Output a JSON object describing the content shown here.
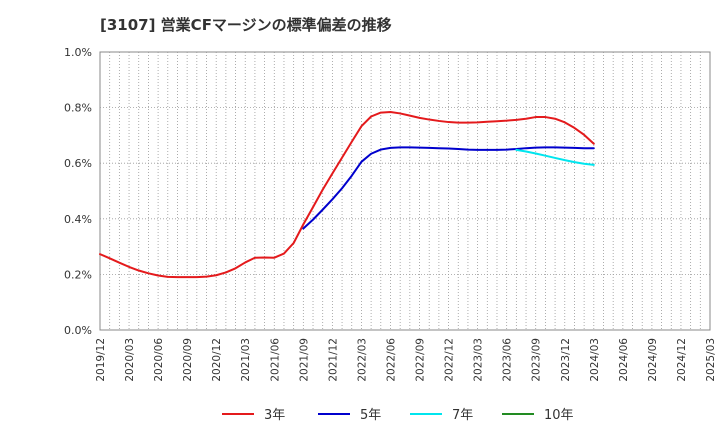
{
  "chart_data": {
    "type": "line",
    "title": "[3107]  営業CFマージンの標準偏差の推移",
    "xlabel": "",
    "ylabel": "",
    "ylim": [
      0,
      1.0
    ],
    "y_ticks": [
      "0.0%",
      "0.2%",
      "0.4%",
      "0.6%",
      "0.8%",
      "1.0%"
    ],
    "y_tick_values": [
      0,
      0.2,
      0.4,
      0.6,
      0.8,
      1.0
    ],
    "x_ticks": [
      "2019/12",
      "2020/03",
      "2020/06",
      "2020/09",
      "2020/12",
      "2021/03",
      "2021/06",
      "2021/09",
      "2021/12",
      "2022/03",
      "2022/06",
      "2022/09",
      "2022/12",
      "2023/03",
      "2023/06",
      "2023/09",
      "2023/12",
      "2024/03",
      "2024/06",
      "2024/09",
      "2024/12",
      "2025/03"
    ],
    "grid": true,
    "series": [
      {
        "name": "3年",
        "color": "#e41a1c",
        "x": [
          "2019/12",
          "2020/01",
          "2020/02",
          "2020/03",
          "2020/04",
          "2020/05",
          "2020/06",
          "2020/07",
          "2020/08",
          "2020/09",
          "2020/10",
          "2020/11",
          "2020/12",
          "2021/01",
          "2021/02",
          "2021/03",
          "2021/04",
          "2021/05",
          "2021/06",
          "2021/07",
          "2021/08",
          "2021/09",
          "2021/10",
          "2021/11",
          "2021/12",
          "2022/01",
          "2022/02",
          "2022/03",
          "2022/04",
          "2022/05",
          "2022/06",
          "2022/07",
          "2022/08",
          "2022/09",
          "2022/10",
          "2022/11",
          "2022/12",
          "2023/01",
          "2023/02",
          "2023/03",
          "2023/04",
          "2023/05",
          "2023/06",
          "2023/07",
          "2023/08",
          "2023/09",
          "2023/10",
          "2023/11",
          "2023/12",
          "2024/01",
          "2024/02",
          "2024/03"
        ],
        "values": [
          0.273,
          0.258,
          0.242,
          0.227,
          0.214,
          0.204,
          0.196,
          0.191,
          0.19,
          0.19,
          0.19,
          0.192,
          0.197,
          0.207,
          0.222,
          0.243,
          0.26,
          0.261,
          0.26,
          0.275,
          0.313,
          0.38,
          0.442,
          0.505,
          0.563,
          0.62,
          0.677,
          0.733,
          0.768,
          0.782,
          0.784,
          0.779,
          0.771,
          0.763,
          0.757,
          0.752,
          0.748,
          0.746,
          0.746,
          0.747,
          0.749,
          0.751,
          0.753,
          0.756,
          0.76,
          0.766,
          0.766,
          0.76,
          0.747,
          0.727,
          0.702,
          0.67
        ]
      },
      {
        "name": "5年",
        "color": "#0000cd",
        "x": [
          "2021/09",
          "2021/10",
          "2021/11",
          "2021/12",
          "2022/01",
          "2022/02",
          "2022/03",
          "2022/04",
          "2022/05",
          "2022/06",
          "2022/07",
          "2022/08",
          "2022/09",
          "2022/10",
          "2022/11",
          "2022/12",
          "2023/01",
          "2023/02",
          "2023/03",
          "2023/04",
          "2023/05",
          "2023/06",
          "2023/07",
          "2023/08",
          "2023/09",
          "2023/10",
          "2023/11",
          "2023/12",
          "2024/01",
          "2024/02",
          "2024/03"
        ],
        "values": [
          0.365,
          0.397,
          0.433,
          0.47,
          0.51,
          0.555,
          0.605,
          0.634,
          0.649,
          0.655,
          0.657,
          0.657,
          0.656,
          0.655,
          0.654,
          0.653,
          0.651,
          0.649,
          0.648,
          0.648,
          0.648,
          0.649,
          0.651,
          0.654,
          0.656,
          0.657,
          0.657,
          0.656,
          0.655,
          0.654,
          0.654
        ]
      },
      {
        "name": "7年",
        "color": "#00e5ee",
        "x": [
          "2023/07",
          "2023/08",
          "2023/09",
          "2023/10",
          "2023/11",
          "2023/12",
          "2024/01",
          "2024/02",
          "2024/03"
        ],
        "values": [
          0.648,
          0.642,
          0.635,
          0.627,
          0.619,
          0.611,
          0.604,
          0.598,
          0.594
        ]
      },
      {
        "name": "10年",
        "color": "#228b22",
        "x": [],
        "values": []
      }
    ],
    "legend_position": "bottom"
  }
}
